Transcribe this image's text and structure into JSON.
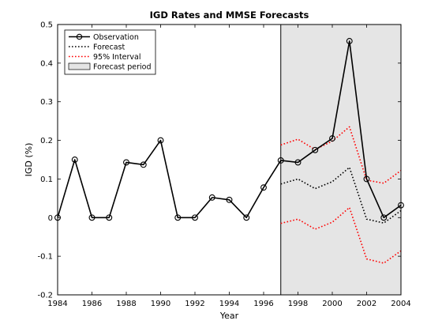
{
  "chart_data": {
    "type": "line",
    "title": "IGD Rates and MMSE Forecasts",
    "xlabel": "Year",
    "ylabel": "IGD (%)",
    "xlim": [
      1984,
      2004
    ],
    "ylim": [
      -0.2,
      0.5
    ],
    "xticks": [
      1984,
      1986,
      1988,
      1990,
      1992,
      1994,
      1996,
      1998,
      2000,
      2002,
      2004
    ],
    "yticks": [
      -0.2,
      -0.1,
      0,
      0.1,
      0.2,
      0.3,
      0.4,
      0.5
    ],
    "grid": false,
    "legend_position": "top-left",
    "forecast_period": {
      "name": "Forecast period",
      "start": 1997,
      "end": 2004,
      "color": "#e5e5e5"
    },
    "series": [
      {
        "name": "Observation",
        "style": "solid-circle",
        "color": "#000000",
        "x": [
          1984,
          1985,
          1986,
          1987,
          1988,
          1989,
          1990,
          1991,
          1992,
          1993,
          1994,
          1995,
          1996,
          1997,
          1998,
          1999,
          2000,
          2001,
          2002,
          2003,
          2004
        ],
        "y": [
          0,
          0.15,
          0,
          0,
          0.143,
          0.137,
          0.2,
          0,
          0,
          0.052,
          0.046,
          0,
          0.078,
          0.148,
          0.143,
          0.175,
          0.205,
          0.457,
          0.1,
          0,
          0.032
        ]
      },
      {
        "name": "Forecast",
        "style": "dotted",
        "color": "#000000",
        "x": [
          1997,
          1998,
          1999,
          2000,
          2001,
          2002,
          2003,
          2004
        ],
        "y": [
          0.087,
          0.1,
          0.075,
          0.093,
          0.13,
          -0.004,
          -0.014,
          0.018
        ]
      },
      {
        "name": "95% Interval",
        "style": "dotted",
        "color": "#ff0000",
        "upper": {
          "x": [
            1997,
            1998,
            1999,
            2000,
            2001,
            2002,
            2003,
            2004
          ],
          "y": [
            0.188,
            0.203,
            0.176,
            0.198,
            0.235,
            0.097,
            0.089,
            0.122
          ]
        },
        "lower": {
          "x": [
            1997,
            1998,
            1999,
            2000,
            2001,
            2002,
            2003,
            2004
          ],
          "y": [
            -0.015,
            -0.004,
            -0.03,
            -0.012,
            0.026,
            -0.107,
            -0.118,
            -0.086
          ]
        }
      }
    ]
  }
}
